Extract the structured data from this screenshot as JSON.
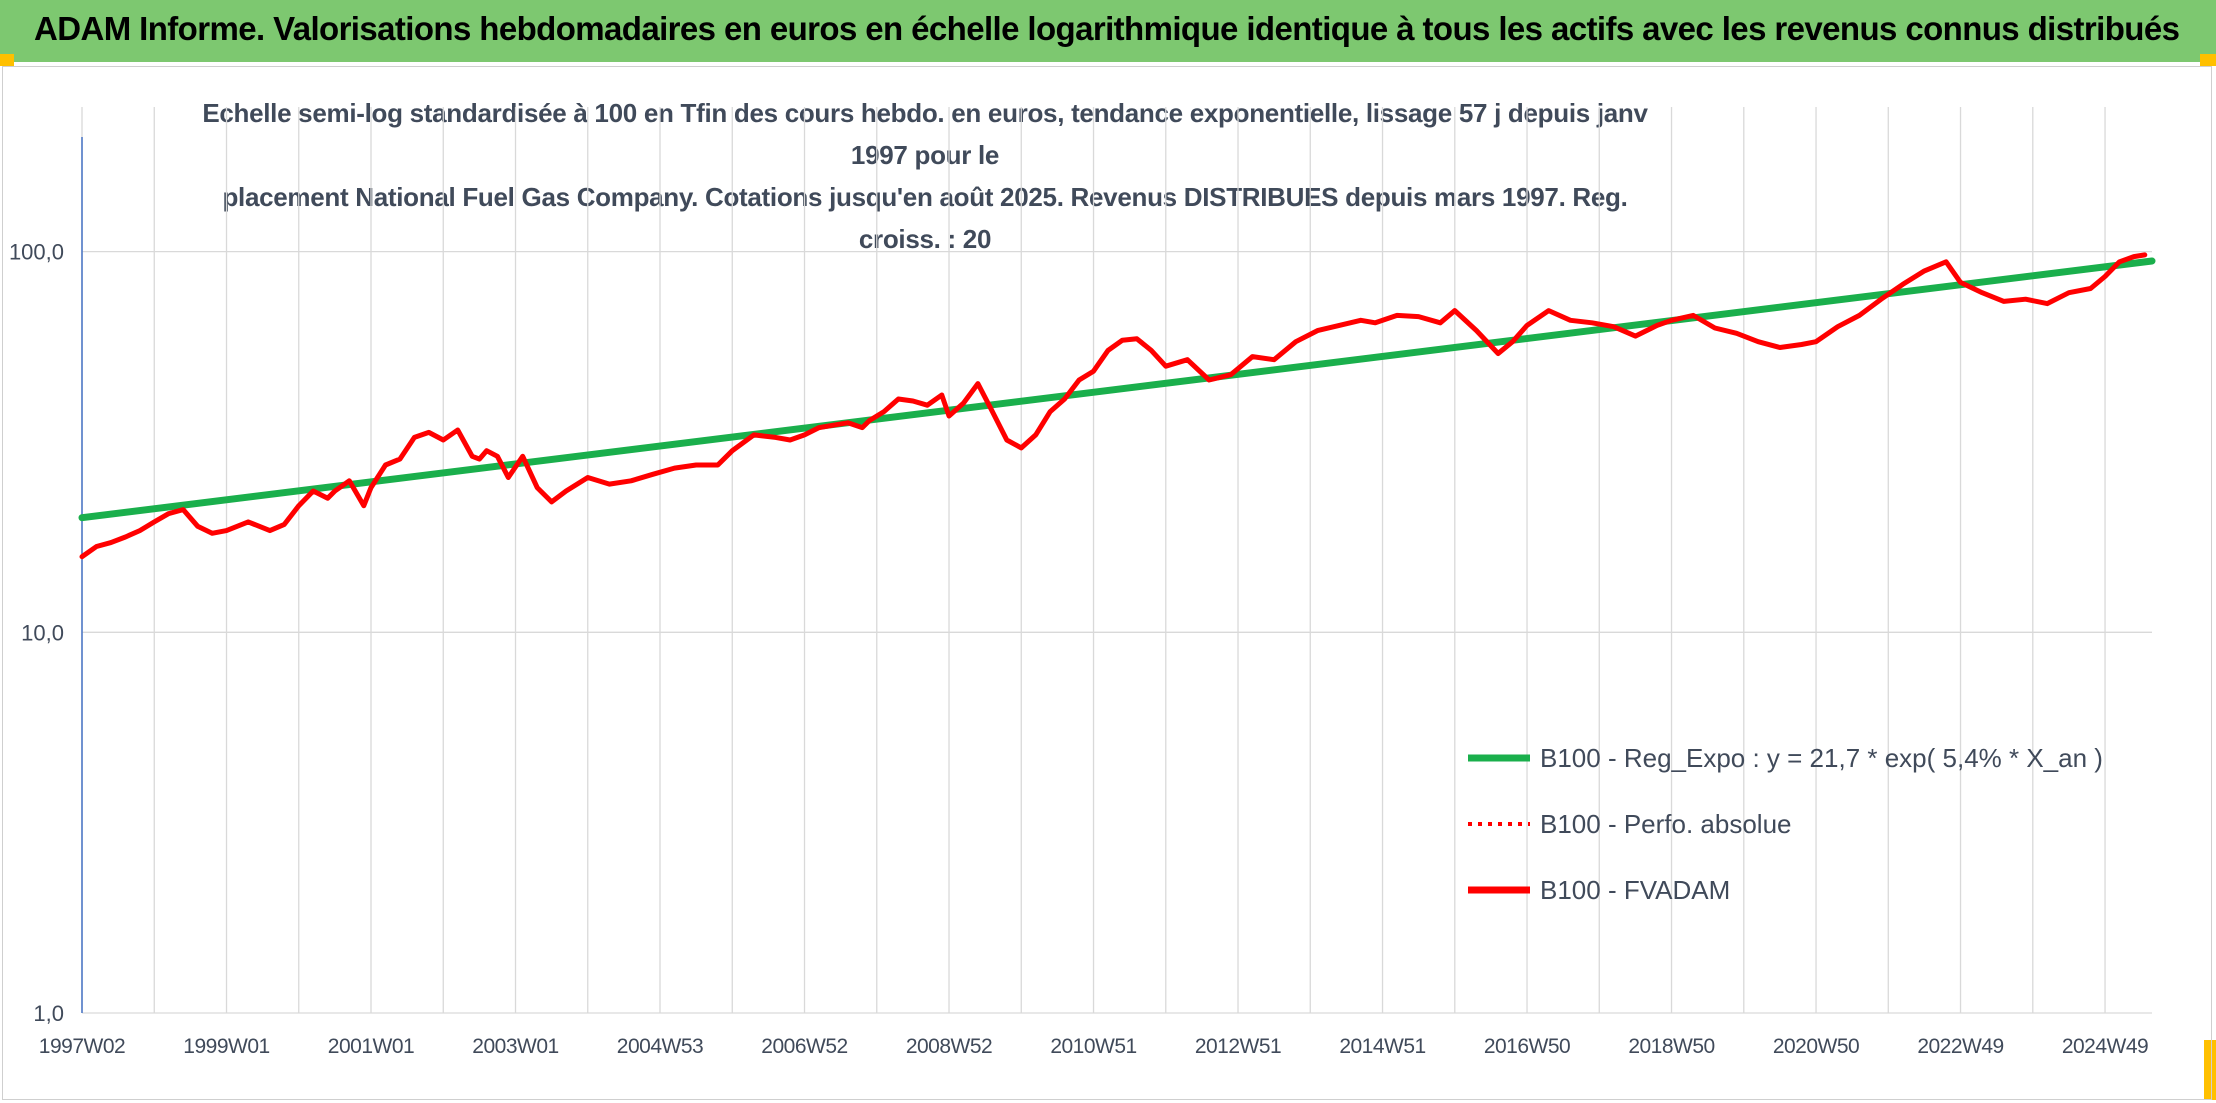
{
  "header": {
    "title": "ADAM Informe. Valorisations hebdomadaires en euros en échelle logarithmique identique à tous les actifs avec les revenus connus distribués"
  },
  "chart_data": {
    "type": "line",
    "title": "Echelle semi-log standardisée à 100 en Tfin des cours hebdo. en euros, tendance exponentielle, lissage 57 j depuis janv 1997 pour le placement National Fuel Gas Company. Cotations jusqu'en août 2025. Revenus DISTRIBUES depuis mars 1997. Reg. croiss. : 20",
    "title_lines": [
      "Echelle semi-log standardisée à 100 en Tfin des cours hebdo. en euros, tendance exponentielle, lissage 57 j depuis janv 1997 pour le",
      "placement National Fuel Gas Company. Cotations jusqu'en août 2025. Revenus DISTRIBUES depuis mars 1997. Reg. croiss. : 20"
    ],
    "y_scale": "log",
    "ylim": [
      1,
      200
    ],
    "y_ticks": [
      {
        "value": 1,
        "label": "1,0"
      },
      {
        "value": 10,
        "label": "10,0"
      },
      {
        "value": 100,
        "label": "100,0"
      }
    ],
    "x_range": [
      1997.0,
      2025.65
    ],
    "x_ticks": [
      {
        "value": 1997.0,
        "label": "1997W02"
      },
      {
        "value": 1999.0,
        "label": "1999W01"
      },
      {
        "value": 2001.0,
        "label": "2001W01"
      },
      {
        "value": 2003.0,
        "label": "2003W01"
      },
      {
        "value": 2005.0,
        "label": "2004W53"
      },
      {
        "value": 2007.0,
        "label": "2006W52"
      },
      {
        "value": 2009.0,
        "label": "2008W52"
      },
      {
        "value": 2011.0,
        "label": "2010W51"
      },
      {
        "value": 2013.0,
        "label": "2012W51"
      },
      {
        "value": 2015.0,
        "label": "2014W51"
      },
      {
        "value": 2017.0,
        "label": "2016W50"
      },
      {
        "value": 2019.0,
        "label": "2018W50"
      },
      {
        "value": 2021.0,
        "label": "2020W50"
      },
      {
        "value": 2023.0,
        "label": "2022W49"
      },
      {
        "value": 2025.0,
        "label": "2024W49"
      }
    ],
    "grid": "vertical",
    "legend_position": "bottom-right",
    "series": [
      {
        "name": "B100 - Reg_Expo : y = 21,7 * exp( 5,4% *  X_an )",
        "color": "#1aaf4c",
        "style": "solid",
        "x": [
          1997.0,
          2025.65
        ],
        "y": [
          20.0,
          94.5
        ]
      },
      {
        "name": "B100 - Perfo. absolue",
        "color": "#ff0000",
        "style": "dotted",
        "x": [],
        "y": []
      },
      {
        "name": "B100 - FVADAM",
        "color": "#ff0000",
        "style": "solid",
        "x": [
          1997.0,
          1997.2,
          1997.4,
          1997.6,
          1997.8,
          1998.0,
          1998.2,
          1998.4,
          1998.6,
          1998.8,
          1999.0,
          1999.3,
          1999.6,
          1999.8,
          2000.0,
          2000.2,
          2000.4,
          2000.5,
          2000.7,
          2000.9,
          2001.0,
          2001.2,
          2001.4,
          2001.6,
          2001.8,
          2002.0,
          2002.2,
          2002.4,
          2002.5,
          2002.6,
          2002.75,
          2002.9,
          2003.1,
          2003.3,
          2003.5,
          2003.7,
          2004.0,
          2004.3,
          2004.6,
          2004.9,
          2005.2,
          2005.5,
          2005.8,
          2006.0,
          2006.3,
          2006.6,
          2006.8,
          2007.0,
          2007.2,
          2007.4,
          2007.6,
          2007.8,
          2007.9,
          2008.1,
          2008.3,
          2008.5,
          2008.7,
          2008.9,
          2009.0,
          2009.2,
          2009.4,
          2009.6,
          2009.8,
          2010.0,
          2010.2,
          2010.4,
          2010.6,
          2010.8,
          2011.0,
          2011.2,
          2011.4,
          2011.6,
          2011.8,
          2012.0,
          2012.3,
          2012.6,
          2012.9,
          2013.2,
          2013.5,
          2013.8,
          2014.1,
          2014.4,
          2014.7,
          2014.9,
          2015.2,
          2015.5,
          2015.8,
          2016.0,
          2016.3,
          2016.6,
          2016.8,
          2017.0,
          2017.3,
          2017.6,
          2017.9,
          2018.2,
          2018.5,
          2018.8,
          2019.0,
          2019.3,
          2019.6,
          2019.9,
          2020.2,
          2020.5,
          2020.8,
          2021.0,
          2021.3,
          2021.6,
          2021.9,
          2022.2,
          2022.5,
          2022.8,
          2023.0,
          2023.3,
          2023.6,
          2023.9,
          2024.2,
          2024.5,
          2024.8,
          2025.0,
          2025.2,
          2025.4,
          2025.55
        ],
        "y": [
          15.8,
          16.8,
          17.2,
          17.8,
          18.5,
          19.5,
          20.5,
          21.0,
          19.0,
          18.2,
          18.5,
          19.5,
          18.5,
          19.2,
          21.5,
          23.5,
          22.5,
          23.5,
          25.0,
          21.5,
          24.0,
          27.5,
          28.5,
          32.5,
          33.5,
          32.0,
          34.0,
          29.0,
          28.5,
          30.0,
          29.0,
          25.5,
          29.0,
          24.0,
          22.0,
          23.5,
          25.5,
          24.5,
          25.0,
          26.0,
          27.0,
          27.5,
          27.5,
          30.0,
          33.0,
          32.5,
          32.0,
          33.0,
          34.5,
          35.0,
          35.5,
          34.5,
          36.0,
          38.0,
          41.0,
          40.5,
          39.5,
          42.0,
          37.0,
          40.0,
          45.0,
          38.0,
          32.0,
          30.5,
          33.0,
          38.0,
          41.0,
          46.0,
          48.5,
          55.0,
          58.5,
          59.0,
          55.0,
          50.0,
          52.0,
          46.0,
          47.5,
          53.0,
          52.0,
          58.0,
          62.0,
          64.0,
          66.0,
          65.0,
          68.0,
          67.5,
          65.0,
          70.0,
          62.0,
          54.0,
          58.0,
          64.0,
          70.0,
          66.0,
          65.0,
          63.5,
          60.0,
          64.0,
          66.0,
          68.0,
          63.0,
          61.0,
          58.0,
          56.0,
          57.0,
          58.0,
          63.5,
          68.0,
          75.0,
          82.0,
          89.0,
          94.0,
          83.0,
          78.0,
          74.0,
          75.0,
          73.0,
          78.0,
          80.0,
          86.0,
          94.0,
          97.0,
          98.0
        ]
      }
    ]
  }
}
